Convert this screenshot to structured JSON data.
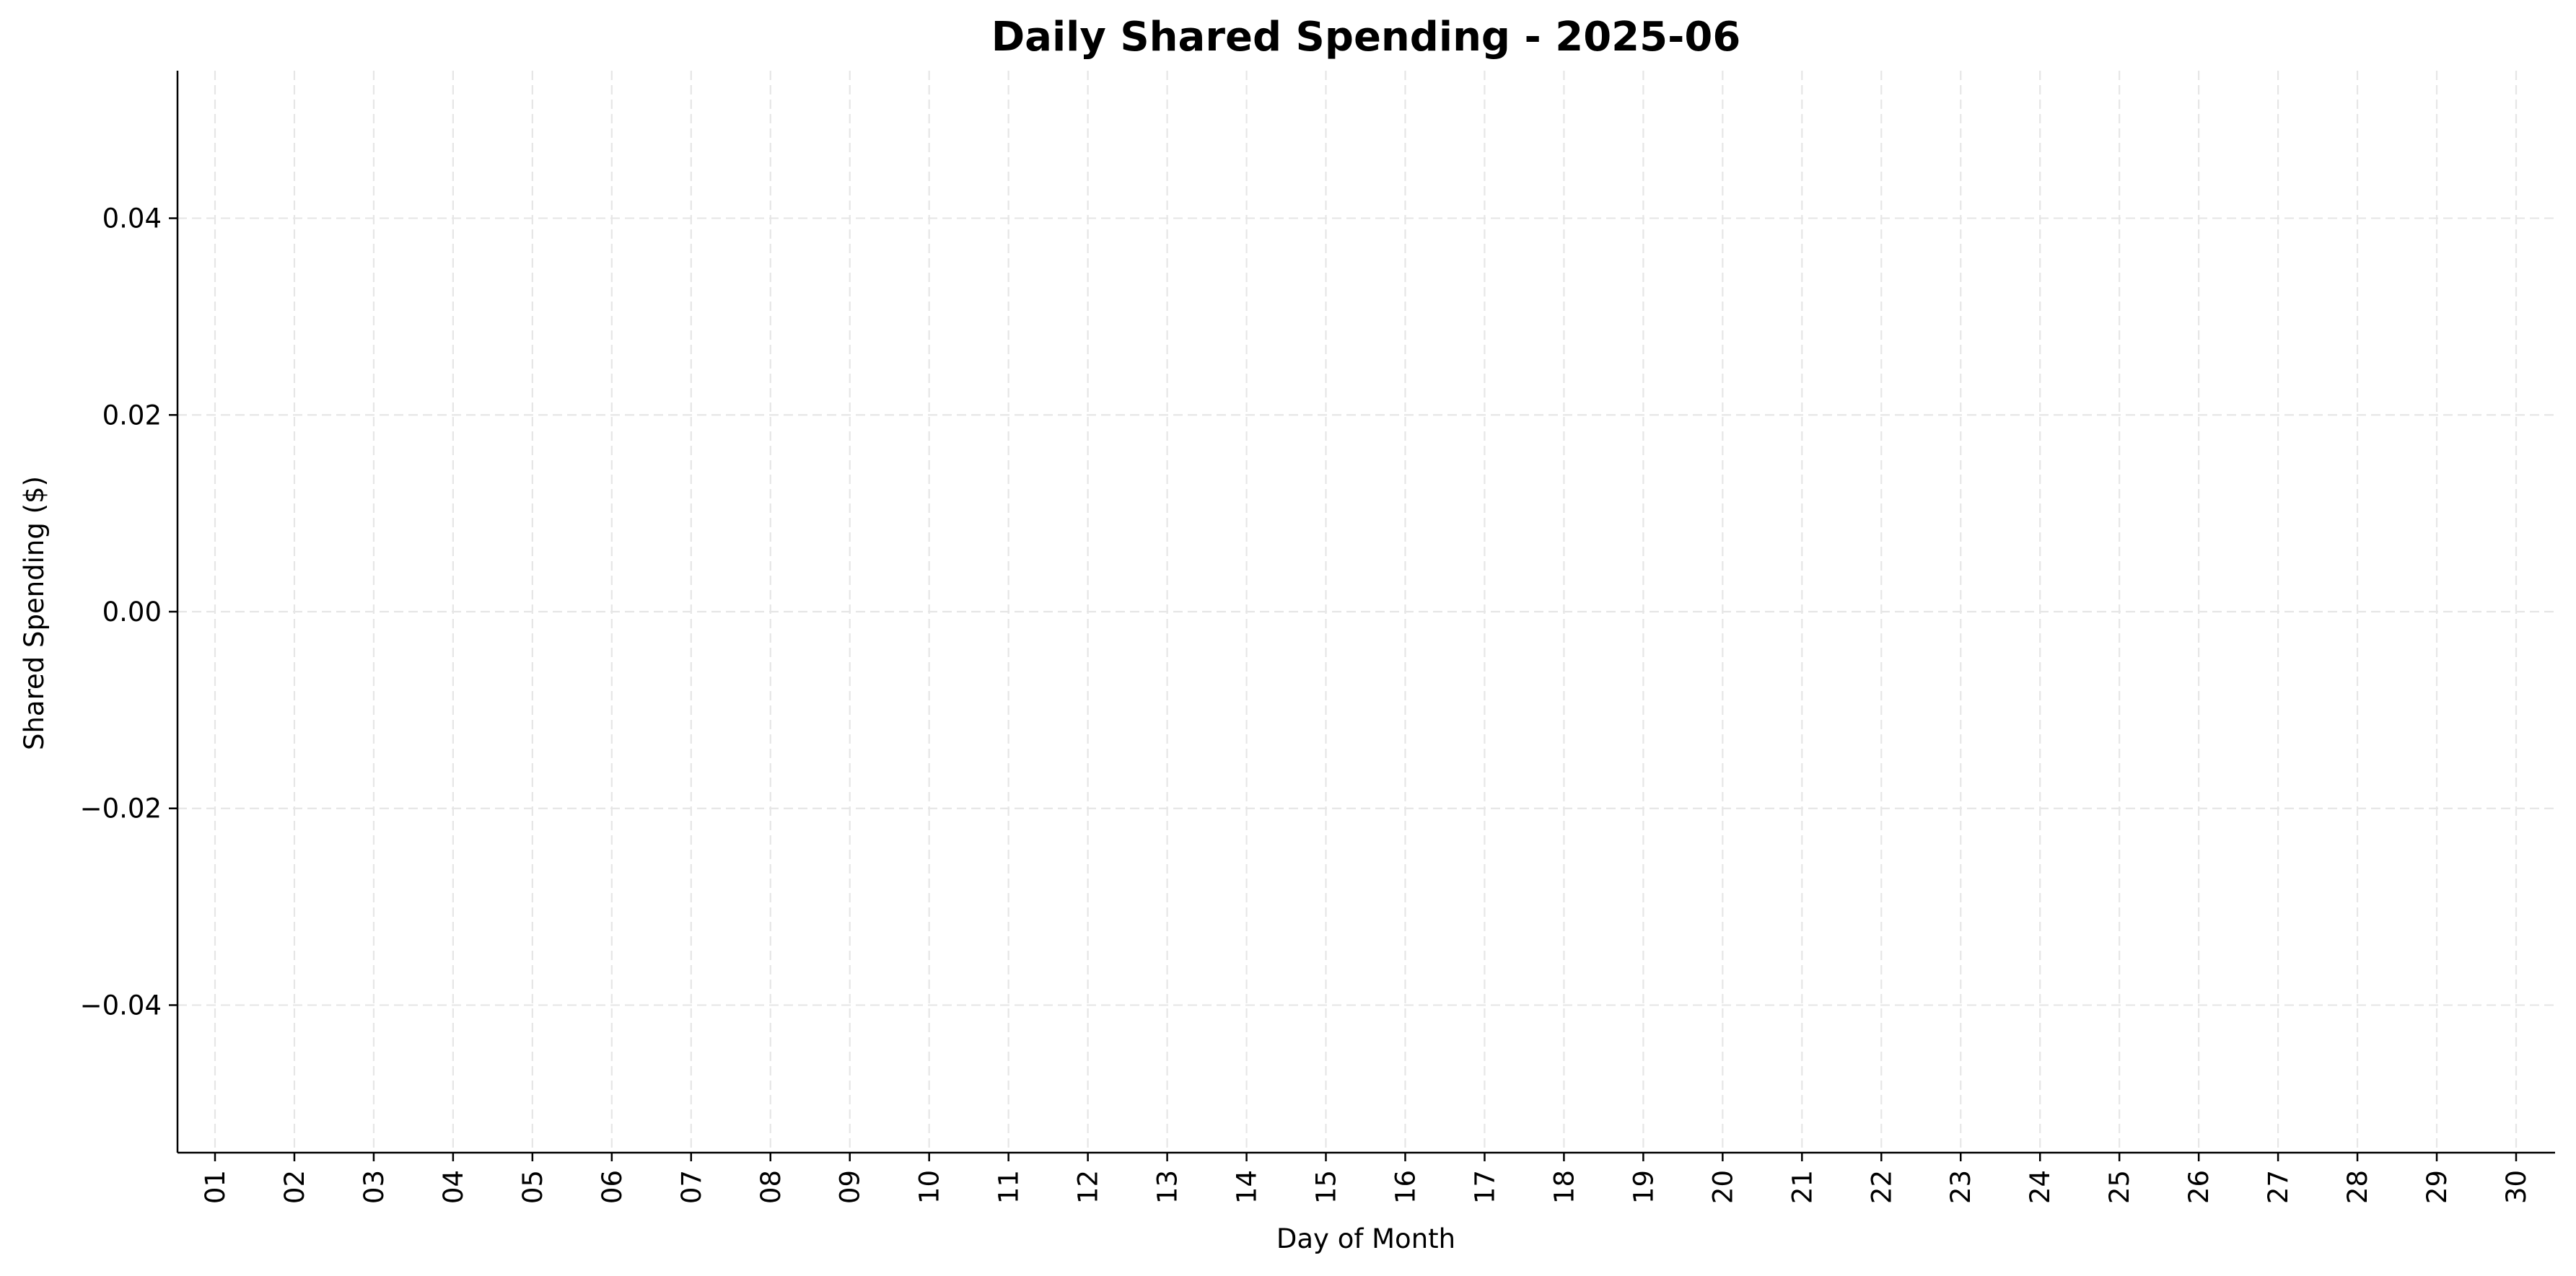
{
  "chart_data": {
    "type": "bar",
    "title": "Daily Shared Spending - 2025-06",
    "xlabel": "Day of Month",
    "ylabel": "Shared Spending ($)",
    "categories": [
      "01",
      "02",
      "03",
      "04",
      "05",
      "06",
      "07",
      "08",
      "09",
      "10",
      "11",
      "12",
      "13",
      "14",
      "15",
      "16",
      "17",
      "18",
      "19",
      "20",
      "21",
      "22",
      "23",
      "24",
      "25",
      "26",
      "27",
      "28",
      "29",
      "30"
    ],
    "values": [
      0,
      0,
      0,
      0,
      0,
      0,
      0,
      0,
      0,
      0,
      0,
      0,
      0,
      0,
      0,
      0,
      0,
      0,
      0,
      0,
      0,
      0,
      0,
      0,
      0,
      0,
      0,
      0,
      0,
      0
    ],
    "ylim": [
      -0.055,
      0.055
    ],
    "yticks": [
      -0.04,
      -0.02,
      0.0,
      0.02,
      0.04
    ],
    "ytick_labels": [
      "−0.04",
      "−0.02",
      "0.00",
      "0.02",
      "0.04"
    ],
    "grid": true,
    "grid_style": "dashed",
    "grid_color": "#e6e6e6",
    "bar_color": "#1f77b4"
  }
}
